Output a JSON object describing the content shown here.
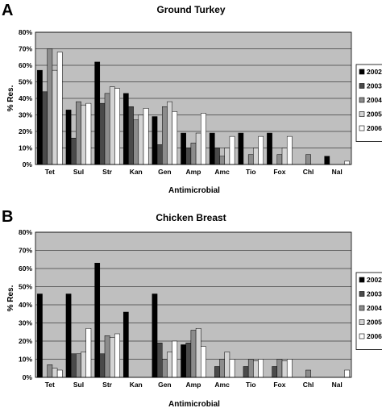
{
  "colors": {
    "plot_background": "#bfbfbf",
    "gridline": "#000000",
    "series": [
      "#000000",
      "#4a4a4a",
      "#8c8c8c",
      "#d4d4d4",
      "#ffffff"
    ]
  },
  "chart_data": [
    {
      "panel": "A",
      "type": "bar",
      "title": "Ground Turkey",
      "xlabel": "Antimicrobial",
      "ylabel": "% Res.",
      "ylim": [
        0,
        80
      ],
      "yticks": [
        "0%",
        "10%",
        "20%",
        "30%",
        "40%",
        "50%",
        "60%",
        "70%",
        "80%"
      ],
      "grid": true,
      "legend_position": "right",
      "categories": [
        "Tet",
        "Sul",
        "Str",
        "Kan",
        "Gen",
        "Amp",
        "Amc",
        "Tio",
        "Fox",
        "Chl",
        "Nal"
      ],
      "series": [
        {
          "name": "2002",
          "values": [
            57,
            33,
            62,
            43,
            29,
            19,
            19,
            19,
            19,
            0,
            5
          ]
        },
        {
          "name": "2003",
          "values": [
            44,
            16,
            37,
            35,
            12,
            10,
            10,
            0,
            0,
            0,
            0
          ]
        },
        {
          "name": "2004",
          "values": [
            70,
            38,
            43,
            27,
            35,
            13,
            5,
            6,
            6,
            6,
            0
          ]
        },
        {
          "name": "2005",
          "values": [
            57,
            36,
            47,
            30,
            38,
            19,
            10,
            10,
            10,
            0,
            0
          ]
        },
        {
          "name": "2006",
          "values": [
            68,
            37,
            46,
            34,
            32,
            31,
            17,
            17,
            17,
            0,
            2
          ]
        }
      ]
    },
    {
      "panel": "B",
      "type": "bar",
      "title": "Chicken Breast",
      "xlabel": "Antimicrobial",
      "ylabel": "% Res.",
      "ylim": [
        0,
        80
      ],
      "yticks": [
        "0%",
        "10%",
        "20%",
        "30%",
        "40%",
        "50%",
        "60%",
        "70%",
        "80%"
      ],
      "grid": true,
      "legend_position": "right",
      "categories": [
        "Tet",
        "Sul",
        "Str",
        "Kan",
        "Gen",
        "Amp",
        "Amc",
        "Tio",
        "Fox",
        "Chl",
        "Nal"
      ],
      "series": [
        {
          "name": "2002",
          "values": [
            46,
            46,
            63,
            36,
            46,
            18,
            0,
            0,
            0,
            0,
            0
          ]
        },
        {
          "name": "2003",
          "values": [
            0,
            13,
            13,
            0,
            19,
            19,
            6,
            6,
            6,
            0,
            0
          ]
        },
        {
          "name": "2004",
          "values": [
            7,
            13,
            23,
            0,
            10,
            26,
            10,
            10,
            10,
            4,
            0
          ]
        },
        {
          "name": "2005",
          "values": [
            5,
            14,
            22,
            0,
            14,
            27,
            14,
            9,
            9,
            0,
            0
          ]
        },
        {
          "name": "2006",
          "values": [
            4,
            27,
            24,
            0,
            20,
            17,
            10,
            10,
            10,
            0,
            4
          ]
        }
      ]
    }
  ]
}
